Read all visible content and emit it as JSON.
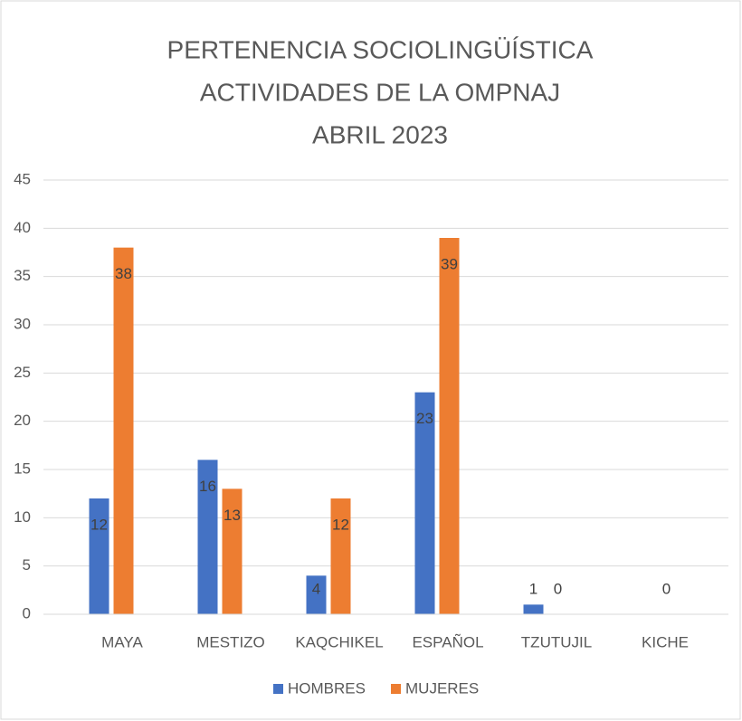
{
  "chart_data": {
    "type": "bar",
    "title": [
      "PERTENENCIA SOCIOLINGÜÍSTICA",
      "ACTIVIDADES DE LA OMPNAJ",
      "ABRIL  2023"
    ],
    "categories": [
      "MAYA",
      "MESTIZO",
      "KAQCHIKEL",
      "ESPAÑOL",
      "TZUTUJIL",
      "KICHE"
    ],
    "series": [
      {
        "name": "HOMBRES",
        "color": "#4472c4",
        "values": [
          12,
          16,
          4,
          23,
          1,
          null
        ]
      },
      {
        "name": "MUJERES",
        "color": "#ed7d31",
        "values": [
          38,
          13,
          12,
          39,
          0,
          0
        ]
      }
    ],
    "ylim": [
      0,
      45
    ],
    "yticks": [
      0,
      5,
      10,
      15,
      20,
      25,
      30,
      35,
      40,
      45
    ],
    "grid": true,
    "legend": "bottom"
  }
}
